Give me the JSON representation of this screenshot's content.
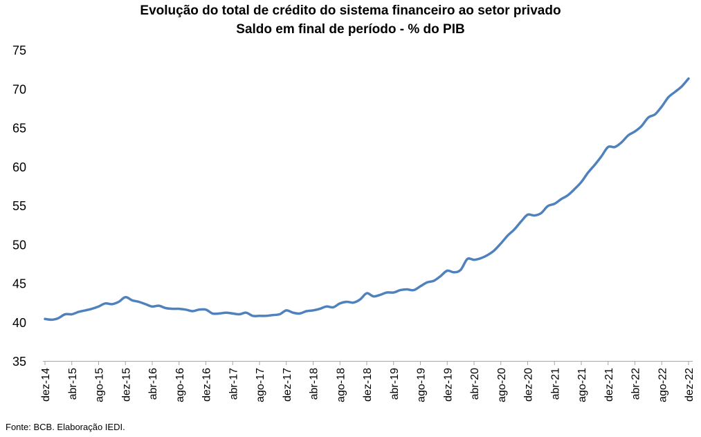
{
  "chart_data": {
    "type": "line",
    "title": "Evolução do total de crédito do sistema financeiro ao setor privado",
    "subtitle": "Saldo em final de período -  % do PIB",
    "ylim": [
      35,
      75
    ],
    "y_ticks": [
      35,
      40,
      45,
      50,
      55,
      60,
      65,
      70,
      75
    ],
    "x_tick_labels": [
      "dez-14",
      "abr-15",
      "ago-15",
      "dez-15",
      "abr-16",
      "ago-16",
      "dez-16",
      "abr-17",
      "ago-17",
      "dez-17",
      "abr-18",
      "ago-18",
      "dez-18",
      "abr-19",
      "ago-19",
      "dez-19",
      "abr-20",
      "ago-20",
      "dez-20",
      "abr-21",
      "ago-21",
      "dez-21",
      "abr-22",
      "ago-22",
      "dez-22"
    ],
    "grid": false,
    "line_color": "#4f81bd",
    "series": [
      {
        "x": [
          "dez-14",
          "jan-15",
          "fev-15",
          "mar-15",
          "abr-15",
          "mai-15",
          "jun-15",
          "jul-15",
          "ago-15",
          "set-15",
          "out-15",
          "nov-15",
          "dez-15",
          "jan-16",
          "fev-16",
          "mar-16",
          "abr-16",
          "mai-16",
          "jun-16",
          "jul-16",
          "ago-16",
          "set-16",
          "out-16",
          "nov-16",
          "dez-16",
          "jan-17",
          "fev-17",
          "mar-17",
          "abr-17",
          "mai-17",
          "jun-17",
          "jul-17",
          "ago-17",
          "set-17",
          "out-17",
          "nov-17",
          "dez-17",
          "jan-18",
          "fev-18",
          "mar-18",
          "abr-18",
          "mai-18",
          "jun-18",
          "jul-18",
          "ago-18",
          "set-18",
          "out-18",
          "nov-18",
          "dez-18",
          "jan-19",
          "fev-19",
          "mar-19",
          "abr-19",
          "mai-19",
          "jun-19",
          "jul-19",
          "ago-19",
          "set-19",
          "out-19",
          "nov-19",
          "dez-19",
          "jan-20",
          "fev-20",
          "mar-20",
          "abr-20",
          "mai-20",
          "jun-20",
          "jul-20",
          "ago-20",
          "set-20",
          "out-20",
          "nov-20",
          "dez-20",
          "jan-21",
          "fev-21",
          "mar-21",
          "abr-21",
          "mai-21",
          "jun-21",
          "jul-21",
          "ago-21",
          "set-21",
          "out-21",
          "nov-21",
          "dez-21",
          "jan-22",
          "fev-22",
          "mar-22",
          "abr-22",
          "mai-22",
          "jun-22",
          "jul-22",
          "ago-22",
          "set-22",
          "out-22",
          "nov-22",
          "dez-22"
        ],
        "values": [
          40.4,
          40.3,
          40.5,
          41.0,
          41.0,
          41.3,
          41.5,
          41.7,
          42.0,
          42.4,
          42.3,
          42.6,
          43.2,
          42.8,
          42.6,
          42.3,
          42.0,
          42.1,
          41.8,
          41.7,
          41.7,
          41.6,
          41.4,
          41.6,
          41.6,
          41.1,
          41.1,
          41.2,
          41.1,
          41.0,
          41.2,
          40.8,
          40.8,
          40.8,
          40.9,
          41.0,
          41.5,
          41.2,
          41.1,
          41.4,
          41.5,
          41.7,
          42.0,
          41.9,
          42.4,
          42.6,
          42.5,
          42.9,
          43.7,
          43.3,
          43.5,
          43.8,
          43.8,
          44.1,
          44.2,
          44.1,
          44.6,
          45.1,
          45.3,
          45.9,
          46.6,
          46.4,
          46.7,
          48.1,
          48.0,
          48.2,
          48.6,
          49.2,
          50.1,
          51.1,
          51.9,
          52.9,
          53.8,
          53.7,
          54.0,
          54.9,
          55.2,
          55.8,
          56.3,
          57.1,
          58.0,
          59.2,
          60.2,
          61.3,
          62.5,
          62.5,
          63.1,
          64.0,
          64.5,
          65.2,
          66.3,
          66.7,
          67.7,
          68.9,
          69.6,
          70.3,
          71.3
        ]
      }
    ],
    "source": "Fonte: BCB. Elaboração IEDI."
  }
}
